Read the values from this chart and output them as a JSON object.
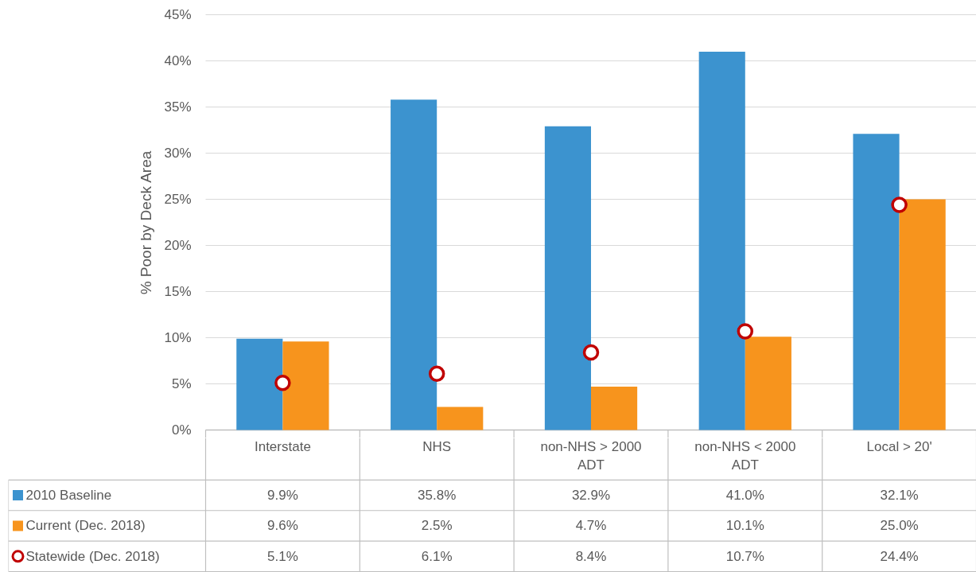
{
  "chart_data": {
    "type": "bar",
    "ylabel": "% Poor by Deck Area",
    "categories": [
      "Interstate",
      "NHS",
      "non-NHS > 2000 ADT",
      "non-NHS < 2000 ADT",
      "Local > 20'"
    ],
    "ylim": [
      0,
      45
    ],
    "yticks": [
      {
        "value": 0,
        "label": "0%"
      },
      {
        "value": 5,
        "label": "5%"
      },
      {
        "value": 10,
        "label": "10%"
      },
      {
        "value": 15,
        "label": "15%"
      },
      {
        "value": 20,
        "label": "20%"
      },
      {
        "value": 25,
        "label": "25%"
      },
      {
        "value": 30,
        "label": "30%"
      },
      {
        "value": 35,
        "label": "35%"
      },
      {
        "value": 40,
        "label": "40%"
      },
      {
        "value": 45,
        "label": "45%"
      }
    ],
    "grid": "y",
    "legend": "bottom",
    "series": [
      {
        "name": "2010 Baseline",
        "color": "#3c93cf",
        "values": [
          9.9,
          35.8,
          32.9,
          41.0,
          32.1
        ],
        "value_labels": [
          "9.9%",
          "35.8%",
          "32.9%",
          "41.0%",
          "32.1%"
        ]
      },
      {
        "name": "Current (Dec. 2018)",
        "color": "#f7941d",
        "values": [
          9.6,
          2.5,
          4.7,
          10.1,
          25.0
        ],
        "value_labels": [
          "9.6%",
          "2.5%",
          "4.7%",
          "10.1%",
          "25.0%"
        ]
      },
      {
        "name": "Statewide (Dec. 2018)",
        "type": "scatter",
        "marker": "circle",
        "color": "#c00000",
        "x": [
          "Interstate",
          "NHS",
          "non-NHS > 2000 ADT",
          "non-NHS < 2000 ADT",
          "Local > 20'"
        ],
        "values": [
          5.1,
          6.1,
          8.4,
          10.7,
          24.4
        ],
        "value_labels": [
          "5.1%",
          "6.1%",
          "8.4%",
          "10.7%",
          "24.4%"
        ]
      }
    ]
  }
}
